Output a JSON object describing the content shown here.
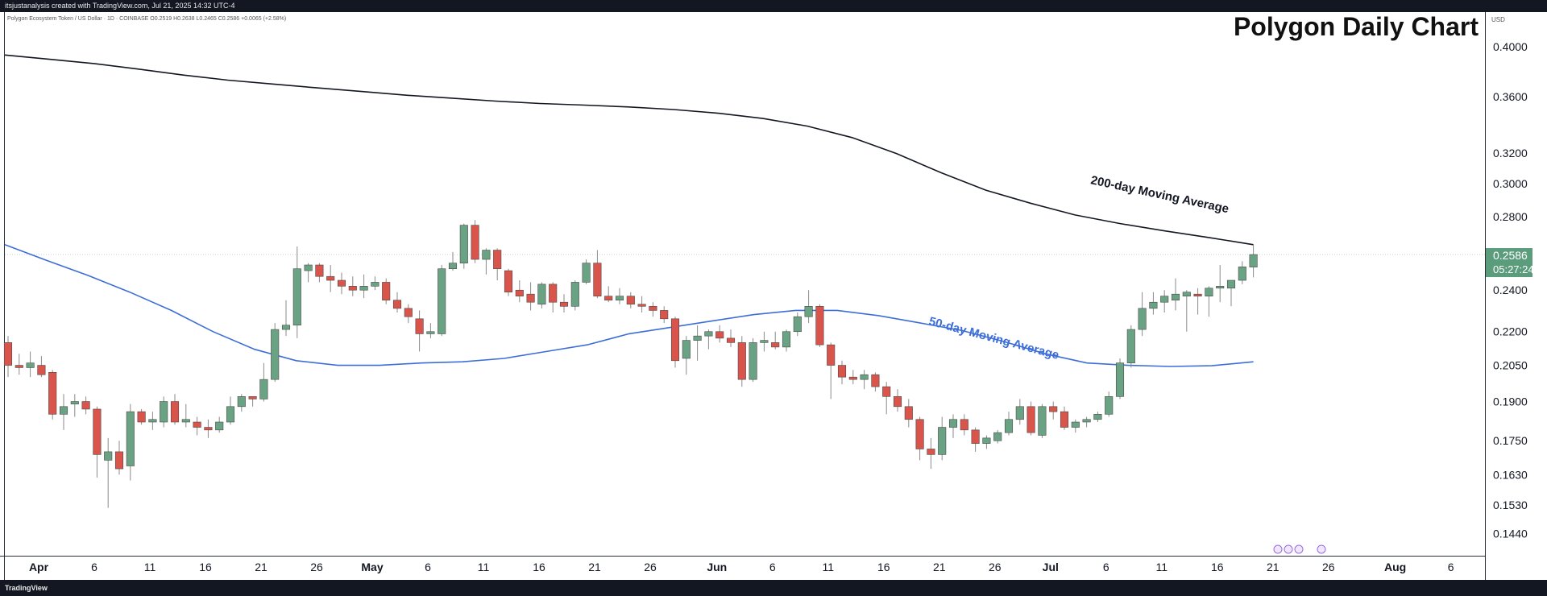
{
  "header": {
    "credit": "itsjustanalysis created with TradingView.com, Jul 21, 2025 14:32 UTC-4",
    "symbol_info": "Polygon Ecosystem Token / US Dollar · 1D · COINBASE  O0.2519  H0.2638  L0.2465  C0.2586  +0.0065 (+2.58%)",
    "currency": "USD"
  },
  "footer": {
    "brand": "TradingView"
  },
  "chart_data": {
    "type": "candlestick",
    "title": "Polygon Daily Chart",
    "ylabel": "USD",
    "ylim": [
      0.1375,
      0.43
    ],
    "y_scale": "log",
    "y_ticks": [
      "0.4000",
      "0.3600",
      "0.3200",
      "0.3000",
      "0.2800",
      "0.2400",
      "0.2200",
      "0.2050",
      "0.1900",
      "0.1750",
      "0.1630",
      "0.1530",
      "0.1440"
    ],
    "x_ticks": [
      "Apr",
      "6",
      "11",
      "16",
      "21",
      "26",
      "May",
      "6",
      "11",
      "16",
      "21",
      "26",
      "Jun",
      "6",
      "11",
      "16",
      "21",
      "26",
      "Jul",
      "6",
      "11",
      "16",
      "21",
      "26",
      "Aug",
      "6"
    ],
    "last_price": {
      "value": "0.2586",
      "countdown": "05:27:24",
      "color": "#5b9c7c"
    },
    "colors": {
      "up": "#6aa383",
      "down": "#d9544a",
      "ma200": "#131722",
      "ma50": "#3d6ed8"
    },
    "annotations": [
      "200-day Moving Average",
      "50-day Moving Average"
    ],
    "candles": [
      {
        "o": 0.215,
        "h": 0.218,
        "l": 0.2,
        "c": 0.205
      },
      {
        "o": 0.205,
        "h": 0.21,
        "l": 0.201,
        "c": 0.204
      },
      {
        "o": 0.204,
        "h": 0.211,
        "l": 0.2,
        "c": 0.206
      },
      {
        "o": 0.205,
        "h": 0.209,
        "l": 0.2,
        "c": 0.201
      },
      {
        "o": 0.202,
        "h": 0.203,
        "l": 0.183,
        "c": 0.185
      },
      {
        "o": 0.185,
        "h": 0.193,
        "l": 0.179,
        "c": 0.188
      },
      {
        "o": 0.189,
        "h": 0.193,
        "l": 0.184,
        "c": 0.19
      },
      {
        "o": 0.19,
        "h": 0.192,
        "l": 0.185,
        "c": 0.187
      },
      {
        "o": 0.187,
        "h": 0.188,
        "l": 0.162,
        "c": 0.17
      },
      {
        "o": 0.168,
        "h": 0.176,
        "l": 0.152,
        "c": 0.171
      },
      {
        "o": 0.171,
        "h": 0.175,
        "l": 0.163,
        "c": 0.165
      },
      {
        "o": 0.166,
        "h": 0.189,
        "l": 0.161,
        "c": 0.186
      },
      {
        "o": 0.186,
        "h": 0.187,
        "l": 0.181,
        "c": 0.182
      },
      {
        "o": 0.182,
        "h": 0.186,
        "l": 0.179,
        "c": 0.183
      },
      {
        "o": 0.182,
        "h": 0.192,
        "l": 0.18,
        "c": 0.19
      },
      {
        "o": 0.19,
        "h": 0.193,
        "l": 0.181,
        "c": 0.182
      },
      {
        "o": 0.182,
        "h": 0.189,
        "l": 0.18,
        "c": 0.183
      },
      {
        "o": 0.182,
        "h": 0.184,
        "l": 0.177,
        "c": 0.18
      },
      {
        "o": 0.18,
        "h": 0.183,
        "l": 0.176,
        "c": 0.179
      },
      {
        "o": 0.179,
        "h": 0.184,
        "l": 0.178,
        "c": 0.182
      },
      {
        "o": 0.182,
        "h": 0.192,
        "l": 0.181,
        "c": 0.188
      },
      {
        "o": 0.188,
        "h": 0.193,
        "l": 0.186,
        "c": 0.192
      },
      {
        "o": 0.192,
        "h": 0.192,
        "l": 0.188,
        "c": 0.191
      },
      {
        "o": 0.191,
        "h": 0.206,
        "l": 0.19,
        "c": 0.199
      },
      {
        "o": 0.199,
        "h": 0.224,
        "l": 0.198,
        "c": 0.221
      },
      {
        "o": 0.221,
        "h": 0.235,
        "l": 0.218,
        "c": 0.223
      },
      {
        "o": 0.223,
        "h": 0.263,
        "l": 0.217,
        "c": 0.251
      },
      {
        "o": 0.25,
        "h": 0.254,
        "l": 0.244,
        "c": 0.253
      },
      {
        "o": 0.253,
        "h": 0.254,
        "l": 0.244,
        "c": 0.247
      },
      {
        "o": 0.247,
        "h": 0.253,
        "l": 0.239,
        "c": 0.245
      },
      {
        "o": 0.245,
        "h": 0.249,
        "l": 0.238,
        "c": 0.242
      },
      {
        "o": 0.242,
        "h": 0.247,
        "l": 0.237,
        "c": 0.24
      },
      {
        "o": 0.24,
        "h": 0.248,
        "l": 0.236,
        "c": 0.242
      },
      {
        "o": 0.242,
        "h": 0.247,
        "l": 0.24,
        "c": 0.244
      },
      {
        "o": 0.244,
        "h": 0.246,
        "l": 0.233,
        "c": 0.235
      },
      {
        "o": 0.235,
        "h": 0.239,
        "l": 0.229,
        "c": 0.231
      },
      {
        "o": 0.231,
        "h": 0.233,
        "l": 0.224,
        "c": 0.227
      },
      {
        "o": 0.226,
        "h": 0.23,
        "l": 0.211,
        "c": 0.219
      },
      {
        "o": 0.219,
        "h": 0.224,
        "l": 0.217,
        "c": 0.22
      },
      {
        "o": 0.219,
        "h": 0.253,
        "l": 0.218,
        "c": 0.251
      },
      {
        "o": 0.251,
        "h": 0.26,
        "l": 0.25,
        "c": 0.254
      },
      {
        "o": 0.254,
        "h": 0.276,
        "l": 0.251,
        "c": 0.275
      },
      {
        "o": 0.275,
        "h": 0.278,
        "l": 0.254,
        "c": 0.256
      },
      {
        "o": 0.256,
        "h": 0.262,
        "l": 0.248,
        "c": 0.261
      },
      {
        "o": 0.261,
        "h": 0.262,
        "l": 0.245,
        "c": 0.251
      },
      {
        "o": 0.25,
        "h": 0.251,
        "l": 0.237,
        "c": 0.239
      },
      {
        "o": 0.24,
        "h": 0.245,
        "l": 0.234,
        "c": 0.237
      },
      {
        "o": 0.238,
        "h": 0.244,
        "l": 0.23,
        "c": 0.234
      },
      {
        "o": 0.233,
        "h": 0.244,
        "l": 0.231,
        "c": 0.243
      },
      {
        "o": 0.243,
        "h": 0.244,
        "l": 0.229,
        "c": 0.234
      },
      {
        "o": 0.234,
        "h": 0.238,
        "l": 0.229,
        "c": 0.232
      },
      {
        "o": 0.232,
        "h": 0.245,
        "l": 0.23,
        "c": 0.244
      },
      {
        "o": 0.244,
        "h": 0.256,
        "l": 0.243,
        "c": 0.254
      },
      {
        "o": 0.254,
        "h": 0.261,
        "l": 0.236,
        "c": 0.237
      },
      {
        "o": 0.237,
        "h": 0.242,
        "l": 0.234,
        "c": 0.235
      },
      {
        "o": 0.235,
        "h": 0.241,
        "l": 0.233,
        "c": 0.237
      },
      {
        "o": 0.237,
        "h": 0.239,
        "l": 0.231,
        "c": 0.233
      },
      {
        "o": 0.233,
        "h": 0.237,
        "l": 0.229,
        "c": 0.232
      },
      {
        "o": 0.232,
        "h": 0.234,
        "l": 0.227,
        "c": 0.23
      },
      {
        "o": 0.23,
        "h": 0.232,
        "l": 0.224,
        "c": 0.226
      },
      {
        "o": 0.226,
        "h": 0.227,
        "l": 0.204,
        "c": 0.207
      },
      {
        "o": 0.208,
        "h": 0.218,
        "l": 0.201,
        "c": 0.216
      },
      {
        "o": 0.216,
        "h": 0.223,
        "l": 0.207,
        "c": 0.218
      },
      {
        "o": 0.218,
        "h": 0.221,
        "l": 0.212,
        "c": 0.22
      },
      {
        "o": 0.22,
        "h": 0.223,
        "l": 0.215,
        "c": 0.217
      },
      {
        "o": 0.217,
        "h": 0.221,
        "l": 0.213,
        "c": 0.215
      },
      {
        "o": 0.215,
        "h": 0.218,
        "l": 0.196,
        "c": 0.199
      },
      {
        "o": 0.199,
        "h": 0.217,
        "l": 0.198,
        "c": 0.215
      },
      {
        "o": 0.215,
        "h": 0.22,
        "l": 0.211,
        "c": 0.216
      },
      {
        "o": 0.215,
        "h": 0.22,
        "l": 0.212,
        "c": 0.213
      },
      {
        "o": 0.213,
        "h": 0.221,
        "l": 0.211,
        "c": 0.22
      },
      {
        "o": 0.22,
        "h": 0.229,
        "l": 0.218,
        "c": 0.227
      },
      {
        "o": 0.227,
        "h": 0.24,
        "l": 0.224,
        "c": 0.232
      },
      {
        "o": 0.232,
        "h": 0.233,
        "l": 0.213,
        "c": 0.214
      },
      {
        "o": 0.214,
        "h": 0.215,
        "l": 0.191,
        "c": 0.205
      },
      {
        "o": 0.205,
        "h": 0.207,
        "l": 0.197,
        "c": 0.2
      },
      {
        "o": 0.2,
        "h": 0.203,
        "l": 0.197,
        "c": 0.199
      },
      {
        "o": 0.199,
        "h": 0.203,
        "l": 0.195,
        "c": 0.201
      },
      {
        "o": 0.201,
        "h": 0.202,
        "l": 0.194,
        "c": 0.196
      },
      {
        "o": 0.196,
        "h": 0.198,
        "l": 0.185,
        "c": 0.192
      },
      {
        "o": 0.192,
        "h": 0.195,
        "l": 0.186,
        "c": 0.188
      },
      {
        "o": 0.188,
        "h": 0.191,
        "l": 0.18,
        "c": 0.183
      },
      {
        "o": 0.183,
        "h": 0.184,
        "l": 0.168,
        "c": 0.172
      },
      {
        "o": 0.172,
        "h": 0.176,
        "l": 0.165,
        "c": 0.17
      },
      {
        "o": 0.17,
        "h": 0.184,
        "l": 0.168,
        "c": 0.18
      },
      {
        "o": 0.18,
        "h": 0.185,
        "l": 0.176,
        "c": 0.183
      },
      {
        "o": 0.183,
        "h": 0.185,
        "l": 0.177,
        "c": 0.179
      },
      {
        "o": 0.179,
        "h": 0.18,
        "l": 0.171,
        "c": 0.174
      },
      {
        "o": 0.174,
        "h": 0.177,
        "l": 0.172,
        "c": 0.176
      },
      {
        "o": 0.175,
        "h": 0.179,
        "l": 0.174,
        "c": 0.178
      },
      {
        "o": 0.178,
        "h": 0.186,
        "l": 0.177,
        "c": 0.183
      },
      {
        "o": 0.183,
        "h": 0.191,
        "l": 0.181,
        "c": 0.188
      },
      {
        "o": 0.188,
        "h": 0.19,
        "l": 0.177,
        "c": 0.178
      },
      {
        "o": 0.177,
        "h": 0.189,
        "l": 0.176,
        "c": 0.188
      },
      {
        "o": 0.188,
        "h": 0.19,
        "l": 0.183,
        "c": 0.186
      },
      {
        "o": 0.186,
        "h": 0.188,
        "l": 0.179,
        "c": 0.18
      },
      {
        "o": 0.18,
        "h": 0.183,
        "l": 0.178,
        "c": 0.182
      },
      {
        "o": 0.182,
        "h": 0.184,
        "l": 0.18,
        "c": 0.183
      },
      {
        "o": 0.183,
        "h": 0.186,
        "l": 0.182,
        "c": 0.185
      },
      {
        "o": 0.185,
        "h": 0.194,
        "l": 0.184,
        "c": 0.192
      },
      {
        "o": 0.192,
        "h": 0.208,
        "l": 0.191,
        "c": 0.206
      },
      {
        "o": 0.206,
        "h": 0.223,
        "l": 0.204,
        "c": 0.221
      },
      {
        "o": 0.221,
        "h": 0.239,
        "l": 0.218,
        "c": 0.231
      },
      {
        "o": 0.231,
        "h": 0.239,
        "l": 0.228,
        "c": 0.234
      },
      {
        "o": 0.234,
        "h": 0.24,
        "l": 0.229,
        "c": 0.237
      },
      {
        "o": 0.235,
        "h": 0.246,
        "l": 0.23,
        "c": 0.238
      },
      {
        "o": 0.237,
        "h": 0.24,
        "l": 0.22,
        "c": 0.239
      },
      {
        "o": 0.238,
        "h": 0.241,
        "l": 0.228,
        "c": 0.237
      },
      {
        "o": 0.237,
        "h": 0.242,
        "l": 0.227,
        "c": 0.241
      },
      {
        "o": 0.241,
        "h": 0.253,
        "l": 0.234,
        "c": 0.242
      },
      {
        "o": 0.241,
        "h": 0.245,
        "l": 0.232,
        "c": 0.245
      },
      {
        "o": 0.245,
        "h": 0.255,
        "l": 0.243,
        "c": 0.252
      },
      {
        "o": 0.2519,
        "h": 0.2638,
        "l": 0.2465,
        "c": 0.2586
      }
    ],
    "ma200": [
      0.393,
      0.3895,
      0.386,
      0.3815,
      0.3768,
      0.3728,
      0.3698,
      0.3668,
      0.364,
      0.3612,
      0.359,
      0.3568,
      0.355,
      0.3538,
      0.3524,
      0.3505,
      0.3478,
      0.344,
      0.3385,
      0.3305,
      0.3195,
      0.307,
      0.296,
      0.288,
      0.281,
      0.276,
      0.2718,
      0.268,
      0.264
    ],
    "ma50": [
      0.264,
      0.2555,
      0.2475,
      0.239,
      0.23,
      0.22,
      0.212,
      0.207,
      0.205,
      0.205,
      0.206,
      0.2065,
      0.208,
      0.211,
      0.214,
      0.219,
      0.222,
      0.225,
      0.228,
      0.23,
      0.23,
      0.2275,
      0.224,
      0.2205,
      0.2155,
      0.21,
      0.206,
      0.205,
      0.2045,
      0.2048,
      0.2065
    ]
  }
}
